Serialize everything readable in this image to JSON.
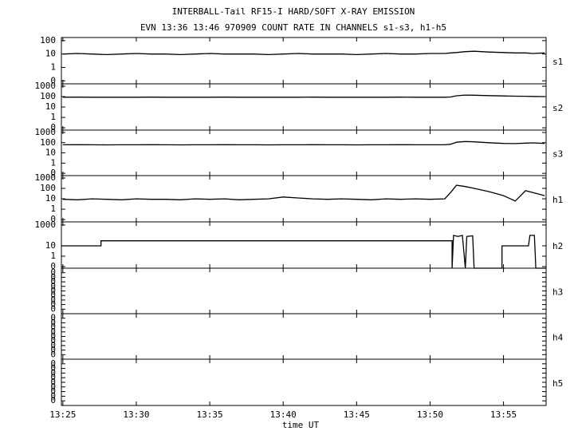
{
  "title": "INTERBALL-Tail RF15-I HARD/SOFT X-RAY EMISSION",
  "subtitle": "EVN 13:36 13:46 970909  COUNT RATE IN CHANNELS s1-s3, h1-h5",
  "x_label": "time UT",
  "xlim": [
    804.9,
    837.9
  ],
  "xticks": [
    {
      "value": 805,
      "label": "13:25"
    },
    {
      "value": 810,
      "label": "13:30"
    },
    {
      "value": 815,
      "label": "13:35"
    },
    {
      "value": 820,
      "label": "13:40"
    },
    {
      "value": 825,
      "label": "13:45"
    },
    {
      "value": 830,
      "label": "13:50"
    },
    {
      "value": 835,
      "label": "13:55"
    }
  ],
  "x": [
    805,
    806,
    807,
    808,
    809,
    810,
    811,
    812,
    813,
    814,
    815,
    816,
    817,
    818,
    819,
    820,
    821,
    822,
    823,
    824,
    825,
    826,
    827,
    828,
    829,
    830,
    831,
    831.4,
    831.8,
    832.4,
    833,
    834,
    835,
    835.8,
    836.5,
    837,
    837.8
  ],
  "chart_data": [
    {
      "type": "line",
      "name": "s1",
      "log": true,
      "color": "#000000",
      "ylim": [
        0.06,
        170
      ],
      "yticks": [
        100,
        10,
        1,
        {
          "value": 0.1,
          "label": "0"
        }
      ],
      "values": [
        10,
        11,
        10,
        9,
        10,
        11,
        10,
        10,
        9,
        10,
        11,
        10,
        10,
        10,
        9,
        10,
        11,
        10,
        10,
        10,
        9,
        10,
        11,
        10,
        10,
        11,
        11,
        12,
        13,
        15,
        16,
        14,
        13,
        12,
        12,
        11,
        12
      ]
    },
    {
      "type": "line",
      "name": "s2",
      "log": true,
      "color": "#000000",
      "ylim": [
        0.06,
        1700
      ],
      "yticks": [
        1000,
        100,
        10,
        1,
        {
          "value": 0.1,
          "label": "0"
        }
      ],
      "values": [
        88,
        89,
        88,
        87,
        88,
        88,
        89,
        88,
        87,
        88,
        88,
        89,
        88,
        88,
        87,
        88,
        88,
        89,
        88,
        88,
        87,
        88,
        88,
        89,
        88,
        88,
        88,
        92,
        120,
        140,
        135,
        125,
        115,
        110,
        108,
        105,
        100
      ]
    },
    {
      "type": "line",
      "name": "s3",
      "log": true,
      "color": "#000000",
      "ylim": [
        0.06,
        1700
      ],
      "yticks": [
        1000,
        100,
        10,
        1,
        {
          "value": 0.1,
          "label": "0"
        }
      ],
      "values": [
        62,
        63,
        62,
        61,
        62,
        62,
        63,
        62,
        61,
        62,
        62,
        63,
        62,
        62,
        61,
        62,
        62,
        63,
        62,
        62,
        61,
        62,
        62,
        63,
        62,
        62,
        62,
        70,
        110,
        130,
        120,
        100,
        85,
        82,
        90,
        95,
        85
      ]
    },
    {
      "type": "line",
      "name": "h1",
      "log": true,
      "color": "#000000",
      "ylim": [
        0.06,
        1700
      ],
      "yticks": [
        1000,
        100,
        10,
        1,
        {
          "value": 0.1,
          "label": "0"
        }
      ],
      "values": [
        9,
        8,
        10,
        9,
        8,
        10,
        9,
        9,
        8,
        10,
        9,
        10,
        8,
        9,
        10,
        15,
        12,
        10,
        9,
        10,
        9,
        8,
        10,
        9,
        10,
        9,
        10,
        40,
        200,
        150,
        100,
        50,
        20,
        6,
        60,
        40,
        20
      ]
    },
    {
      "type": "line",
      "name": "h2",
      "log": true,
      "color": "#000000",
      "ylim": [
        0.07,
        2000
      ],
      "yticks": [
        1000,
        10,
        1,
        {
          "value": 0.1,
          "label": "0"
        }
      ],
      "x": [
        804.9,
        807.6,
        807.6,
        831.5,
        831.5,
        831.6,
        831.9,
        832.2,
        832.4,
        832.5,
        832.9,
        833.0,
        834.9,
        834.9,
        836.7,
        836.8,
        837.1,
        837.2,
        837.9
      ],
      "values": [
        10,
        10,
        30,
        30,
        0,
        100,
        80,
        100,
        0,
        80,
        90,
        0,
        0,
        10,
        10,
        100,
        100,
        0,
        0
      ]
    },
    {
      "type": "line",
      "name": "h3",
      "log": false,
      "ylim": [
        0,
        1
      ],
      "yticks": [
        {
          "value": 0.1,
          "label": "0"
        },
        {
          "value": 0.2,
          "label": "0"
        },
        {
          "value": 0.3,
          "label": "0"
        },
        {
          "value": 0.4,
          "label": "0"
        },
        {
          "value": 0.5,
          "label": "0"
        },
        {
          "value": 0.6,
          "label": "0"
        },
        {
          "value": 0.7,
          "label": "0"
        },
        {
          "value": 0.8,
          "label": "0"
        },
        {
          "value": 0.9,
          "label": "0"
        }
      ]
    },
    {
      "type": "line",
      "name": "h4",
      "log": false,
      "ylim": [
        0,
        1
      ],
      "yticks": [
        {
          "value": 0.1,
          "label": "0"
        },
        {
          "value": 0.2,
          "label": "0"
        },
        {
          "value": 0.3,
          "label": "0"
        },
        {
          "value": 0.4,
          "label": "0"
        },
        {
          "value": 0.5,
          "label": "0"
        },
        {
          "value": 0.6,
          "label": "0"
        },
        {
          "value": 0.7,
          "label": "0"
        },
        {
          "value": 0.8,
          "label": "0"
        },
        {
          "value": 0.9,
          "label": "0"
        }
      ]
    },
    {
      "type": "line",
      "name": "h5",
      "log": false,
      "ylim": [
        0,
        1
      ],
      "yticks": [
        {
          "value": 0.1,
          "label": "0"
        },
        {
          "value": 0.2,
          "label": "0"
        },
        {
          "value": 0.3,
          "label": "0"
        },
        {
          "value": 0.4,
          "label": "0"
        },
        {
          "value": 0.5,
          "label": "0"
        },
        {
          "value": 0.6,
          "label": "0"
        },
        {
          "value": 0.7,
          "label": "0"
        },
        {
          "value": 0.8,
          "label": "0"
        },
        {
          "value": 0.9,
          "label": "0"
        }
      ]
    }
  ]
}
